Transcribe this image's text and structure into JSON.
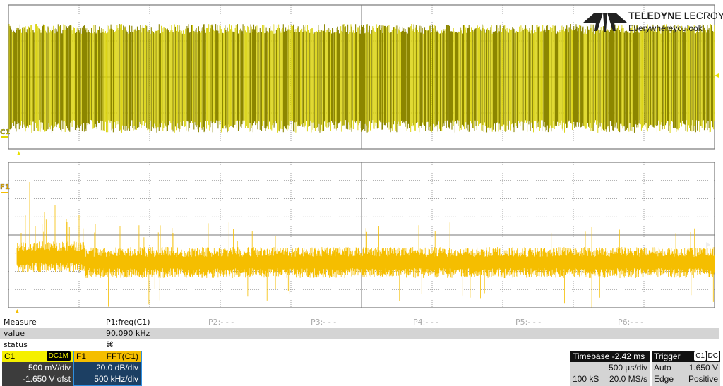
{
  "colors": {
    "c1_trace": "#d8d000",
    "c1_trace_dark": "#8c8600",
    "f1_trace": "#f5be00",
    "c1_label": "#f5f000",
    "f1_label": "#f5be00",
    "f1_border": "#2f8fe0"
  },
  "logo": {
    "brand_bold": "TELEDYNE",
    "brand_light": "LECROY",
    "tagline": "Everywhereyoulook"
  },
  "traces": {
    "c1_label": "C1",
    "f1_label": "F1"
  },
  "measure": {
    "header_label": "Measure",
    "value_label": "value",
    "status_label": "status",
    "params": [
      {
        "name": "P1:freq(C1)",
        "value": "90.090 kHz",
        "status_icon": "status-warning-icon"
      },
      {
        "name": "P2:- - -"
      },
      {
        "name": "P3:- - -"
      },
      {
        "name": "P4:- - -"
      },
      {
        "name": "P5:- - -"
      },
      {
        "name": "P6:- - -"
      }
    ]
  },
  "c1": {
    "label": "C1",
    "coupling": "DC1M",
    "vdiv": "500 mV/div",
    "offset": "-1.650 V ofst"
  },
  "f1": {
    "label": "F1",
    "function": "FFT(C1)",
    "vdiv": "20.0 dB/div",
    "hdiv": "500 kHz/div"
  },
  "timebase": {
    "label": "Timebase",
    "delay": "-2.42 ms",
    "tdiv": "500 µs/div",
    "samples": "100 kS",
    "rate": "20.0 MS/s"
  },
  "trigger": {
    "label": "Trigger",
    "source": "C1",
    "coupling": "DC",
    "mode": "Auto",
    "level": "1.650 V",
    "type": "Edge",
    "slope": "Positive"
  }
}
